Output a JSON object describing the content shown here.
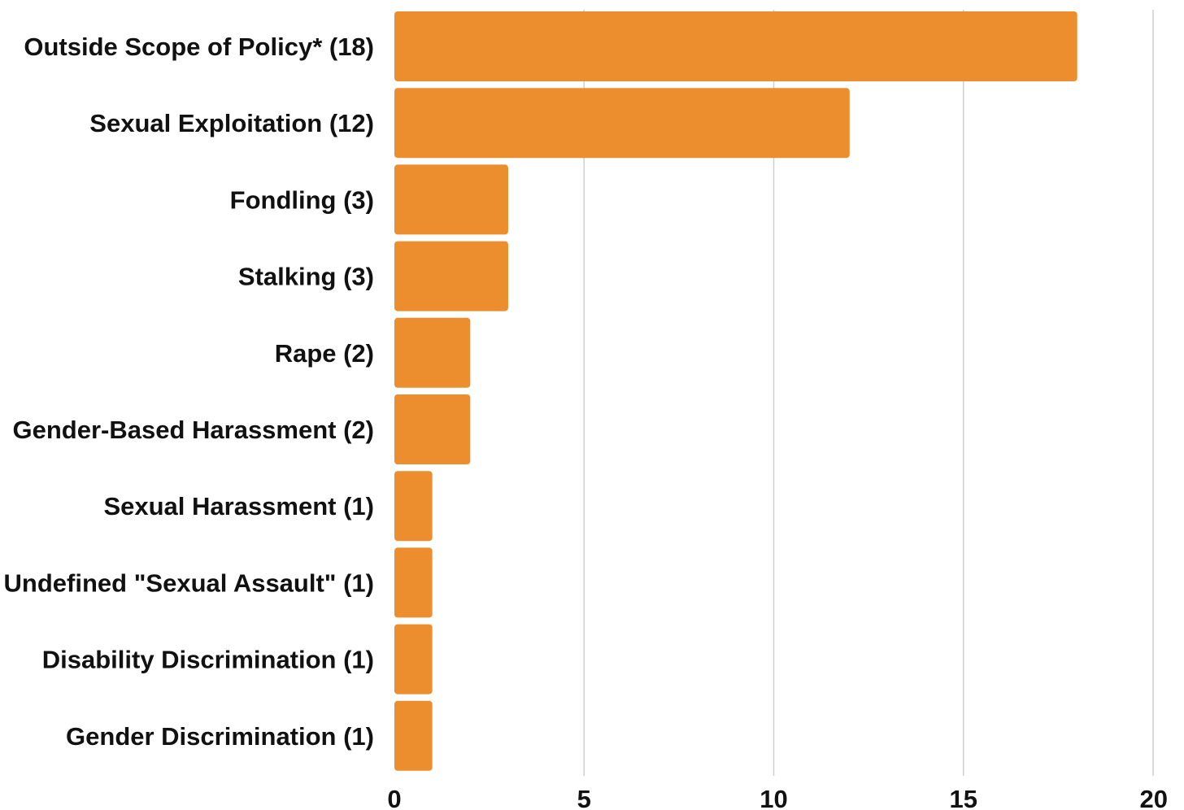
{
  "chart_data": {
    "type": "bar",
    "orientation": "horizontal",
    "categories": [
      "Outside Scope of Policy* (18)",
      "Sexual Exploitation (12)",
      "Fondling (3)",
      "Stalking (3)",
      "Rape (2)",
      "Gender-Based Harassment (2)",
      "Sexual Harassment (1)",
      "Undefined \"Sexual Assault\" (1)",
      "Disability Discrimination (1)",
      "Gender Discrimination (1)"
    ],
    "values": [
      18,
      12,
      3,
      3,
      2,
      2,
      1,
      1,
      1,
      1
    ],
    "xlim": [
      0,
      20
    ],
    "xticks": [
      "0",
      "5",
      "10",
      "15",
      "20"
    ],
    "grid": true,
    "legend": "none",
    "title": "",
    "xlabel": "",
    "ylabel": "",
    "colors": {
      "bar": "#EC8E2D",
      "grid": "#cfcfcf",
      "text": "#111111"
    }
  }
}
